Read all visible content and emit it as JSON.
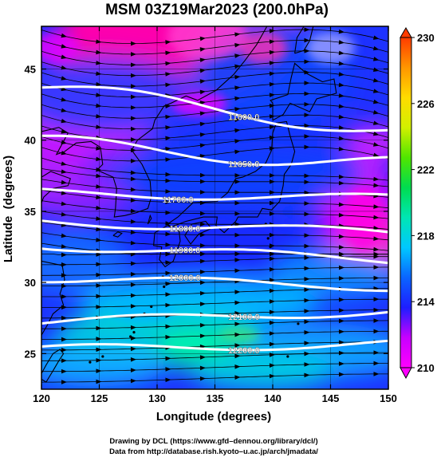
{
  "title": "MSM 03Z19Mar2023 (200.0hPa)",
  "x_axis": {
    "label": "Longitude (degrees)",
    "min": 120,
    "max": 150,
    "ticks": [
      "120",
      "125",
      "130",
      "135",
      "140",
      "145",
      "150"
    ]
  },
  "y_axis": {
    "label": "Latitude  (degrees)",
    "min": 22.5,
    "max": 48,
    "ticks": [
      "25",
      "30",
      "35",
      "40",
      "45"
    ]
  },
  "colorbar": {
    "min": 210,
    "max": 230,
    "tick_labels": [
      "210",
      "214",
      "218",
      "222",
      "226",
      "230"
    ],
    "colors": [
      "#ff00ff",
      "#c800ff",
      "#1e1eff",
      "#0a64ff",
      "#00c8ff",
      "#00e6b4",
      "#00dc50",
      "#50e600",
      "#d2f000",
      "#ffdc00",
      "#ff9600",
      "#ff3c00"
    ]
  },
  "contours": [
    {
      "label": "11600.0",
      "lat_at_120": 43.7,
      "lat_at_150": 40.7,
      "label_lon": 137.5
    },
    {
      "label": "11650.0",
      "lat_at_120": 39.8,
      "lat_at_150": 38.3,
      "label_lon": 137.5
    },
    {
      "label": "11700.0",
      "lat_at_120": 36.3,
      "lat_at_150": 35.9,
      "label_lon": 131.8
    },
    {
      "label": "11800.0",
      "lat_at_120": 34.3,
      "lat_at_150": 33.5,
      "label_lon": 132.4
    },
    {
      "label": "11900.0",
      "lat_at_120": 32.6,
      "lat_at_150": 31.6,
      "label_lon": 132.4
    },
    {
      "label": "12000.0",
      "lat_at_120": 30.3,
      "lat_at_150": 29.7,
      "label_lon": 132.4
    },
    {
      "label": "12100.0",
      "lat_at_120": 27.2,
      "lat_at_150": 28.0,
      "label_lon": 137.5
    },
    {
      "label": "12200.0",
      "lat_at_120": 25.3,
      "lat_at_150": 25.7,
      "label_lon": 137.5
    }
  ],
  "credits": {
    "drawing": "Drawing by DCL (https://www.gfd–dennou.org/library/dcl/)",
    "data": "Data from http://database.rish.kyoto–u.ac.jp/arch/jmadata/"
  }
}
